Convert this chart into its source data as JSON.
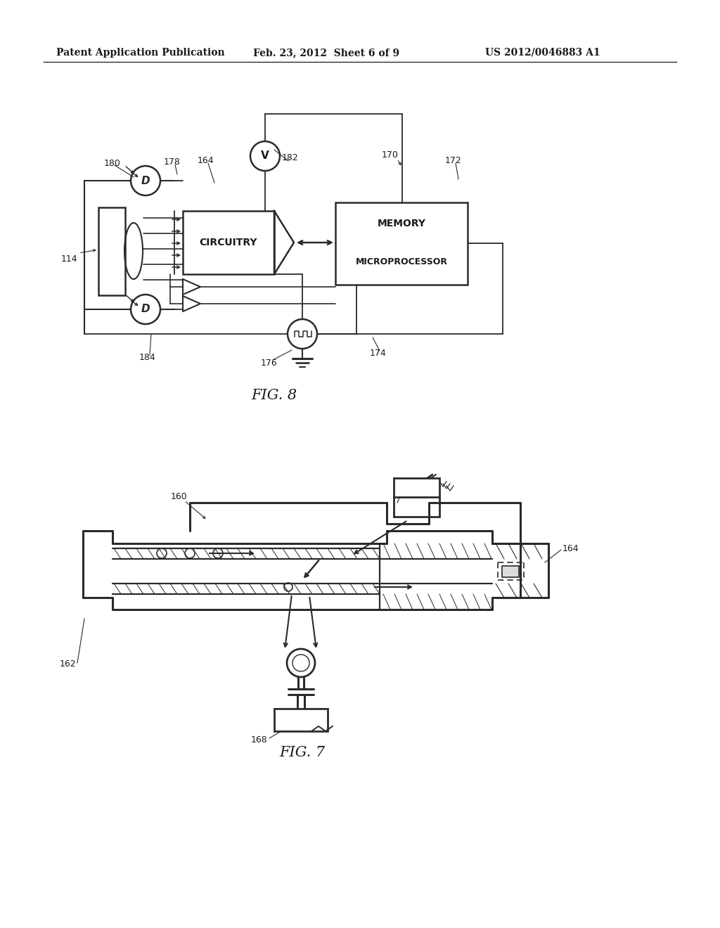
{
  "bg_color": "#ffffff",
  "header_text1": "Patent Application Publication",
  "header_text2": "Feb. 23, 2012  Sheet 6 of 9",
  "header_text3": "US 2012/0046883 A1",
  "fig8_label": "FIG. 8",
  "fig7_label": "FIG. 7",
  "line_color": "#2a2a2a",
  "text_color": "#1a1a1a"
}
